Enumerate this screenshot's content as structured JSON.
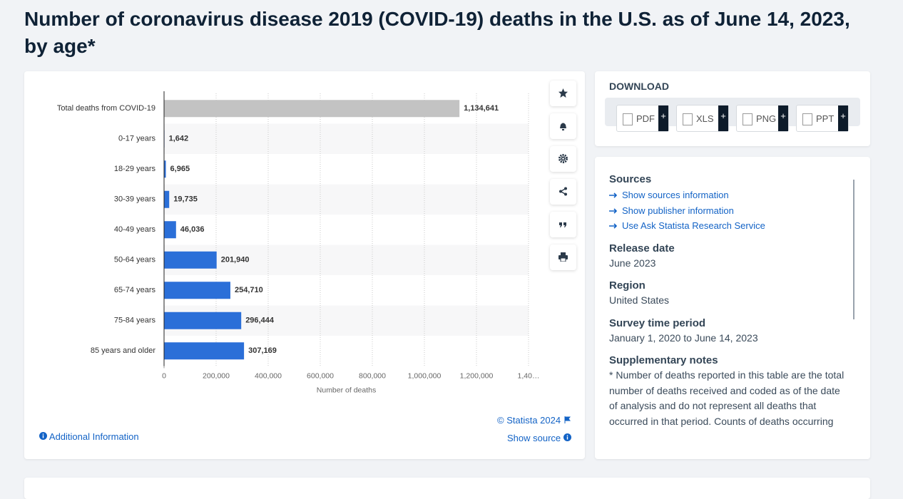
{
  "title": "Number of coronavirus disease 2019 (COVID-19) deaths in the U.S. as of June 14, 2023, by age*",
  "chart_data": {
    "type": "hbar",
    "categories": [
      "Total deaths from COVID-19",
      "0-17 years",
      "18-29 years",
      "30-39 years",
      "40-49 years",
      "50-64 years",
      "65-74 years",
      "75-84 years",
      "85 years and older"
    ],
    "values": [
      1134641,
      1642,
      6965,
      19735,
      46036,
      201940,
      254710,
      296444,
      307169
    ],
    "value_labels": [
      "1,134,641",
      "1,642",
      "6,965",
      "19,735",
      "46,036",
      "201,940",
      "254,710",
      "296,444",
      "307,169"
    ],
    "colors": [
      "#c3c3c3",
      "#2b6fd8",
      "#2b6fd8",
      "#2b6fd8",
      "#2b6fd8",
      "#2b6fd8",
      "#2b6fd8",
      "#2b6fd8",
      "#2b6fd8"
    ],
    "xlabel": "Number of deaths",
    "xlim": [
      0,
      1400000
    ],
    "xticks": [
      0,
      {
        "value": 200000,
        "label": "200,000"
      },
      {
        "value": 400000,
        "label": "400,000"
      },
      {
        "value": 600000,
        "label": "600,000"
      },
      {
        "value": 800000,
        "label": "800,000"
      },
      {
        "value": 1000000,
        "label": "1,000,000"
      },
      {
        "value": 1200000,
        "label": "1,200,000"
      },
      {
        "value": 1400000,
        "label": "1,40…"
      }
    ],
    "grid": true
  },
  "footer": {
    "copyright": "© Statista 2024",
    "show_source": "Show source",
    "additional": "Additional Information"
  },
  "download": {
    "title": "DOWNLOAD",
    "formats": [
      "PDF",
      "XLS",
      "PNG",
      "PPT"
    ],
    "add": "+"
  },
  "sources": {
    "heading": "Sources",
    "links": [
      "Show sources information",
      "Show publisher information",
      "Use Ask Statista Research Service"
    ],
    "sections": [
      {
        "heading": "Release date",
        "text": "June 2023"
      },
      {
        "heading": "Region",
        "text": "United States"
      },
      {
        "heading": "Survey time period",
        "text": "January 1, 2020 to June 14, 2023"
      },
      {
        "heading": "Supplementary notes",
        "text": "* Number of deaths reported in this table are the total number of deaths received and coded as of the date of analysis and do not represent all deaths that occurred in that period. Counts of deaths occurring"
      }
    ]
  }
}
